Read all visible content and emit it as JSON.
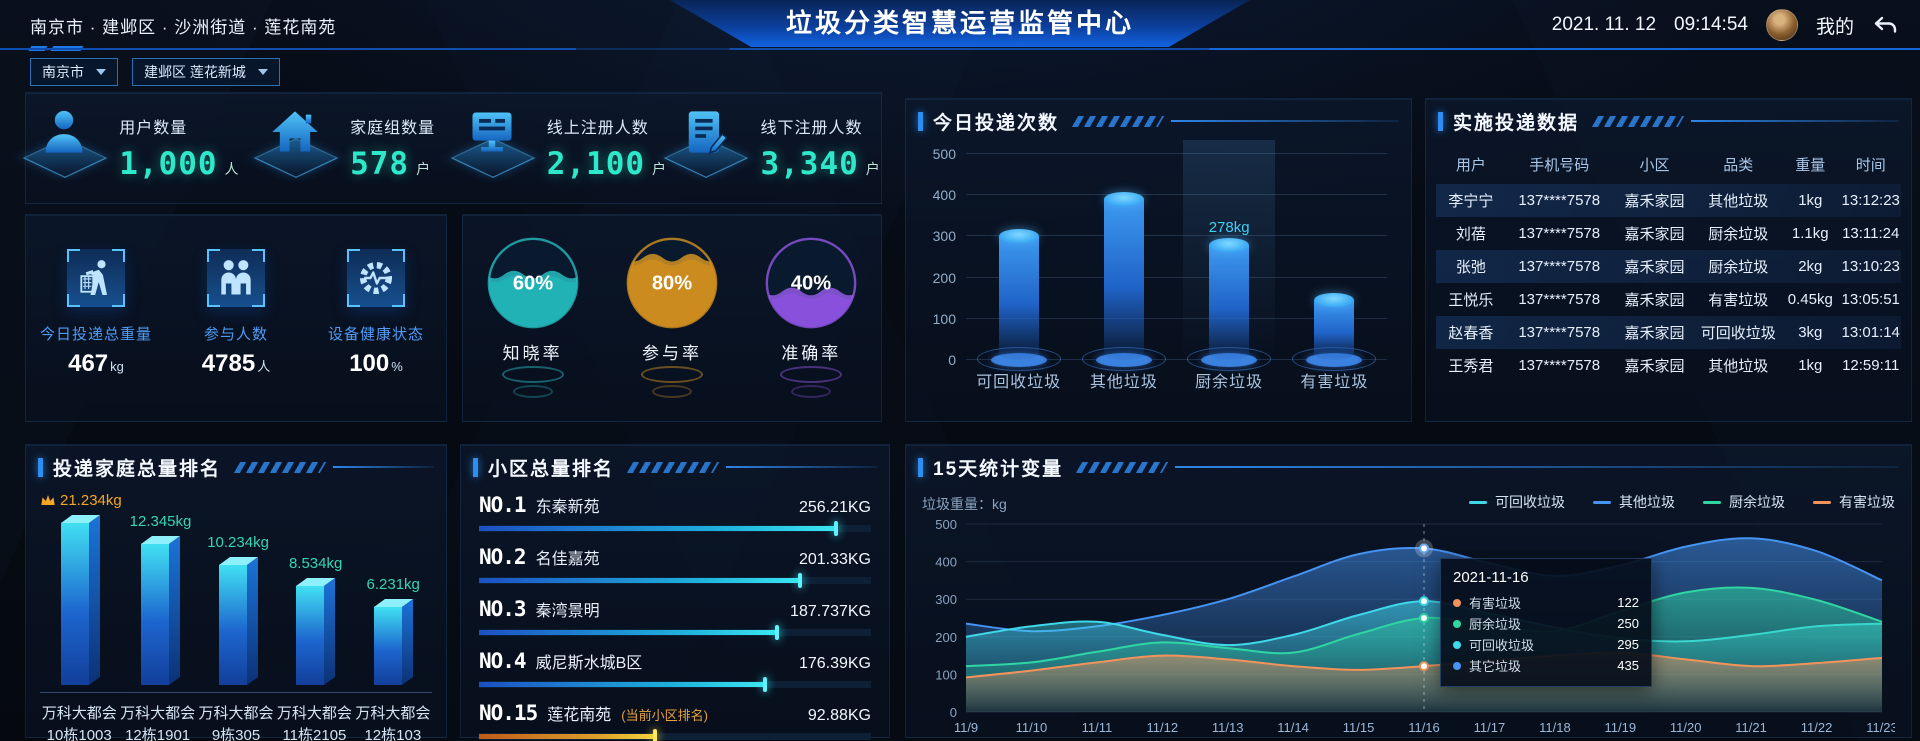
{
  "header": {
    "breadcrumb": "南京市 · 建邺区 · 沙洲街道 · 莲花南苑",
    "title": "垃圾分类智慧运营监管中心",
    "date": "2021. 11. 12",
    "time": "09:14:54",
    "my_label": "我的"
  },
  "filters": {
    "city": "南京市",
    "community": "建邺区 莲花新城"
  },
  "top_stats": {
    "items": [
      {
        "icon": "user-icon",
        "label": "用户数量",
        "value": "1,000",
        "unit": "人"
      },
      {
        "icon": "home-icon",
        "label": "家庭组数量",
        "value": "578",
        "unit": "户"
      },
      {
        "icon": "online-register-icon",
        "label": "线上注册人数",
        "value": "2,100",
        "unit": "户"
      },
      {
        "icon": "offline-register-icon",
        "label": "线下注册人数",
        "value": "3,340",
        "unit": "户"
      }
    ]
  },
  "today_summary": {
    "items": [
      {
        "icon": "trash-bin-icon",
        "label": "今日投递总重量",
        "value": "467",
        "unit": "kg"
      },
      {
        "icon": "participants-icon",
        "label": "参与人数",
        "value": "4785",
        "unit": "人"
      },
      {
        "icon": "device-health-icon",
        "label": "设备健康状态",
        "value": "100",
        "unit": "%"
      }
    ]
  },
  "gauges": {
    "items": [
      {
        "percent": 60,
        "label": "知晓率",
        "color": "#27c6c8",
        "deep": "#0f6b75"
      },
      {
        "percent": 80,
        "label": "参与率",
        "color": "#df9a22",
        "deep": "#8a5410"
      },
      {
        "percent": 40,
        "label": "准确率",
        "color": "#9a5cf0",
        "deep": "#4d2390"
      }
    ]
  },
  "panels": {
    "today": {
      "title": "今日投递次数"
    },
    "realtime": {
      "title": "实施投递数据"
    },
    "family": {
      "title": "投递家庭总量排名"
    },
    "community": {
      "title": "小区总量排名"
    },
    "stats15": {
      "title": "15天统计变量",
      "unit_label": "垃圾重量：kg"
    }
  },
  "realtime_table": {
    "headers": [
      "用户",
      "手机号码",
      "小区",
      "品类",
      "重量",
      "时间"
    ],
    "rows": [
      [
        "李宁宁",
        "137****7578",
        "嘉禾家园",
        "其他垃圾",
        "1kg",
        "13:12:23"
      ],
      [
        "刘蓓",
        "137****7578",
        "嘉禾家园",
        "厨余垃圾",
        "1.1kg",
        "13:11:24"
      ],
      [
        "张弛",
        "137****7578",
        "嘉禾家园",
        "厨余垃圾",
        "2kg",
        "13:10:23"
      ],
      [
        "王悦乐",
        "137****7578",
        "嘉禾家园",
        "有害垃圾",
        "0.45kg",
        "13:05:51"
      ],
      [
        "赵春香",
        "137****7578",
        "嘉禾家园",
        "可回收垃圾",
        "3kg",
        "13:01:14"
      ],
      [
        "王秀君",
        "137****7578",
        "嘉禾家园",
        "其他垃圾",
        "1kg",
        "12:59:11"
      ]
    ]
  },
  "chart_data": [
    {
      "id": "today_counts",
      "type": "bar",
      "title": "今日投递次数",
      "categories": [
        "可回收垃圾",
        "其他垃圾",
        "厨余垃圾",
        "有害垃圾"
      ],
      "values": [
        300,
        390,
        278,
        145
      ],
      "highlight_index": 2,
      "highlight_label": "278kg",
      "ylim": [
        0,
        500
      ],
      "yticks": [
        0,
        100,
        200,
        300,
        400,
        500
      ]
    },
    {
      "id": "family_rank",
      "type": "bar",
      "title": "投递家庭总量排名",
      "categories": [
        [
          "万科大都会",
          "10栋1003"
        ],
        [
          "万科大都会",
          "12栋1901"
        ],
        [
          "万科大都会",
          "9栋305"
        ],
        [
          "万科大都会",
          "11栋2105"
        ],
        [
          "万科大都会",
          "12栋103"
        ]
      ],
      "values_kg": [
        21.234,
        12.345,
        10.234,
        8.534,
        6.231
      ],
      "labels": [
        "21.234kg",
        "12.345kg",
        "10.234kg",
        "8.534kg",
        "6.231kg"
      ],
      "first_color": "#f5a623",
      "other_color": "#35d6b5"
    },
    {
      "id": "community_rank",
      "type": "hbar",
      "title": "小区总量排名",
      "rows": [
        {
          "rank": "NO.1",
          "name": "东秦新苑",
          "note": "",
          "value": "256.21KG",
          "value_kg": 256.21,
          "pct": 91,
          "accent": "blue"
        },
        {
          "rank": "NO.2",
          "name": "名佳嘉苑",
          "note": "",
          "value": "201.33KG",
          "value_kg": 201.33,
          "pct": 82,
          "accent": "blue"
        },
        {
          "rank": "NO.3",
          "name": "秦湾景明",
          "note": "",
          "value": "187.737KG",
          "value_kg": 187.737,
          "pct": 76,
          "accent": "blue"
        },
        {
          "rank": "NO.4",
          "name": "威尼斯水城B区",
          "note": "",
          "value": "176.39KG",
          "value_kg": 176.39,
          "pct": 73,
          "accent": "blue"
        },
        {
          "rank": "NO.15",
          "name": "莲花南苑",
          "note": "(当前小区排名)",
          "value": "92.88KG",
          "value_kg": 92.88,
          "pct": 45,
          "accent": "orange"
        }
      ]
    },
    {
      "id": "stats_15d",
      "type": "area",
      "title": "15天统计变量",
      "unit_label": "垃圾重量：kg",
      "x": [
        "11/9",
        "11/10",
        "11/11",
        "11/12",
        "11/13",
        "11/14",
        "11/15",
        "11/16",
        "11/17",
        "11/18",
        "11/19",
        "11/20",
        "11/21",
        "11/22",
        "11/23"
      ],
      "ylim": [
        0,
        500
      ],
      "yticks": [
        0,
        100,
        200,
        300,
        400,
        500
      ],
      "series": [
        {
          "name": "可回收垃圾",
          "color": "#3fd8e8",
          "values": [
            200,
            228,
            240,
            205,
            178,
            205,
            258,
            295,
            262,
            225,
            196,
            188,
            205,
            228,
            235
          ]
        },
        {
          "name": "其他垃圾",
          "color": "#4593f2",
          "values": [
            235,
            215,
            228,
            258,
            300,
            360,
            420,
            435,
            396,
            362,
            390,
            440,
            462,
            428,
            350
          ]
        },
        {
          "name": "厨余垃圾",
          "color": "#2fd6a3",
          "values": [
            122,
            132,
            160,
            185,
            170,
            158,
            208,
            250,
            232,
            215,
            268,
            318,
            330,
            298,
            240
          ]
        },
        {
          "name": "有害垃圾",
          "color": "#f2935c",
          "values": [
            92,
            110,
            132,
            150,
            140,
            122,
            112,
            122,
            136,
            150,
            158,
            140,
            122,
            130,
            144
          ]
        }
      ],
      "draw_order": [
        "其他垃圾",
        "可回收垃圾",
        "厨余垃圾",
        "有害垃圾"
      ],
      "tooltip": {
        "date": "2021-11-16",
        "x_index": 7,
        "entries": [
          {
            "name": "有害垃圾",
            "value": 122,
            "color": "#f2935c"
          },
          {
            "name": "厨余垃圾",
            "value": 250,
            "color": "#2fd6a3"
          },
          {
            "name": "可回收垃圾",
            "value": 295,
            "color": "#3fd8e8"
          },
          {
            "name": "其它垃圾",
            "value": 435,
            "color": "#4593f2"
          }
        ]
      }
    }
  ]
}
